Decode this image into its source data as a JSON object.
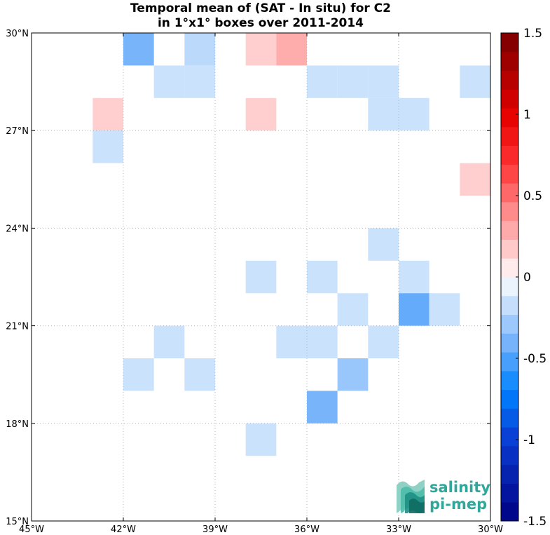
{
  "chart_data": {
    "type": "heatmap",
    "title": [
      "Temporal mean of (SAT - In situ) for C2",
      "in 1°x1° boxes over 2011-2014"
    ],
    "xlabel": "",
    "ylabel": "",
    "xlim": [
      -45,
      -30
    ],
    "ylim": [
      15,
      30
    ],
    "grid": true,
    "x_ticks": [
      -45,
      -42,
      -39,
      -36,
      -33,
      -30
    ],
    "x_tick_labels": [
      "45°W",
      "42°W",
      "39°W",
      "36°W",
      "33°W",
      "30°W"
    ],
    "y_ticks": [
      15,
      18,
      21,
      24,
      27,
      30
    ],
    "y_tick_labels": [
      "15°N",
      "18°N",
      "21°N",
      "24°N",
      "27°N",
      "30°N"
    ],
    "colorbar": {
      "range": [
        -1.5,
        1.5
      ],
      "levels": 26,
      "ticks": [
        -1.5,
        -1,
        -0.5,
        0,
        0.5,
        1,
        1.5
      ],
      "tick_labels": [
        "-1.5",
        "-1",
        "-0.5",
        "0",
        "0.5",
        "1",
        "1.5"
      ]
    },
    "cells": [
      {
        "lon": -42,
        "lat": 29,
        "value": -0.4
      },
      {
        "lon": -40,
        "lat": 29,
        "value": -0.2
      },
      {
        "lon": -38,
        "lat": 29,
        "value": 0.15
      },
      {
        "lon": -37,
        "lat": 29,
        "value": 0.28
      },
      {
        "lon": -41,
        "lat": 28,
        "value": -0.15
      },
      {
        "lon": -40,
        "lat": 28,
        "value": -0.15
      },
      {
        "lon": -36,
        "lat": 28,
        "value": -0.15
      },
      {
        "lon": -35,
        "lat": 28,
        "value": -0.15
      },
      {
        "lon": -34,
        "lat": 28,
        "value": -0.15
      },
      {
        "lon": -31,
        "lat": 28,
        "value": -0.15
      },
      {
        "lon": -43,
        "lat": 27,
        "value": 0.15
      },
      {
        "lon": -38,
        "lat": 27,
        "value": 0.15
      },
      {
        "lon": -34,
        "lat": 27,
        "value": -0.15
      },
      {
        "lon": -33,
        "lat": 27,
        "value": -0.15
      },
      {
        "lon": -43,
        "lat": 26,
        "value": -0.15
      },
      {
        "lon": -31,
        "lat": 25,
        "value": 0.15
      },
      {
        "lon": -34,
        "lat": 23,
        "value": -0.15
      },
      {
        "lon": -38,
        "lat": 22,
        "value": -0.15
      },
      {
        "lon": -36,
        "lat": 22,
        "value": -0.15
      },
      {
        "lon": -33,
        "lat": 22,
        "value": -0.15
      },
      {
        "lon": -35,
        "lat": 21,
        "value": -0.15
      },
      {
        "lon": -33,
        "lat": 21,
        "value": -0.45
      },
      {
        "lon": -32,
        "lat": 21,
        "value": -0.15
      },
      {
        "lon": -41,
        "lat": 20,
        "value": -0.15
      },
      {
        "lon": -37,
        "lat": 20,
        "value": -0.15
      },
      {
        "lon": -36,
        "lat": 20,
        "value": -0.15
      },
      {
        "lon": -34,
        "lat": 20,
        "value": -0.15
      },
      {
        "lon": -42,
        "lat": 19,
        "value": -0.15
      },
      {
        "lon": -40,
        "lat": 19,
        "value": -0.15
      },
      {
        "lon": -35,
        "lat": 19,
        "value": -0.3
      },
      {
        "lon": -36,
        "lat": 18,
        "value": -0.4
      },
      {
        "lon": -38,
        "lat": 17,
        "value": -0.15
      }
    ]
  },
  "logo": {
    "line1": "salinity",
    "line2": "pi-mep",
    "color": "#2fa79a"
  }
}
